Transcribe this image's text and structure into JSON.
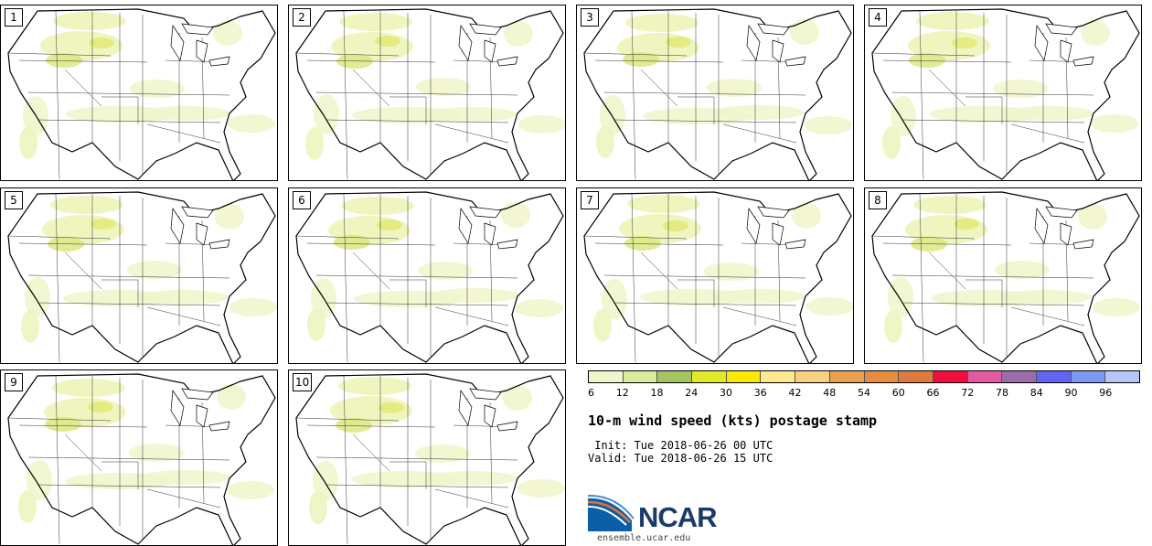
{
  "panels": [
    {
      "label": "1"
    },
    {
      "label": "2"
    },
    {
      "label": "3"
    },
    {
      "label": "4"
    },
    {
      "label": "5"
    },
    {
      "label": "6"
    },
    {
      "label": "7"
    },
    {
      "label": "8"
    },
    {
      "label": "9"
    },
    {
      "label": "10"
    }
  ],
  "colorbar": {
    "colors": [
      "#f1f5cc",
      "#dbeb9c",
      "#a5c562",
      "#e1ea26",
      "#fbe900",
      "#fde98d",
      "#f7d086",
      "#e9a151",
      "#e58d40",
      "#de7a3e",
      "#ef0e3e",
      "#e35aa0",
      "#9a6caa",
      "#6265f3",
      "#7f97f5",
      "#b7c6f8"
    ],
    "tick_labels": [
      "6",
      "12",
      "18",
      "24",
      "30",
      "36",
      "42",
      "48",
      "54",
      "60",
      "66",
      "72",
      "78",
      "84",
      "90",
      "96"
    ]
  },
  "title": "10-m wind speed (kts) postage stamp",
  "init_line": " Init: Tue 2018-06-26 00 UTC",
  "valid_line": "Valid: Tue 2018-06-26 15 UTC",
  "logo_text": "NCAR",
  "url": "ensemble.ucar.edu"
}
